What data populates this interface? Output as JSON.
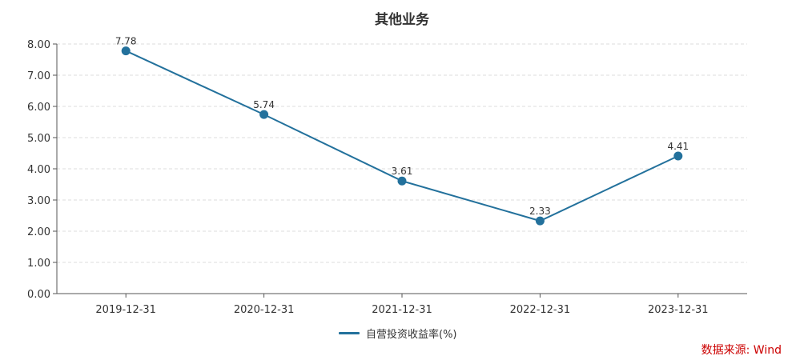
{
  "chart_data": {
    "type": "line",
    "title": "其他业务",
    "categories": [
      "2019-12-31",
      "2020-12-31",
      "2021-12-31",
      "2022-12-31",
      "2023-12-31"
    ],
    "series": [
      {
        "name": "自营投资收益率(%)",
        "values": [
          7.78,
          5.74,
          3.61,
          2.33,
          4.41
        ],
        "labels": [
          "7.78",
          "5.74",
          "3.61",
          "2.33",
          "4.41"
        ]
      }
    ],
    "yticks": [
      "0.00",
      "1.00",
      "2.00",
      "3.00",
      "4.00",
      "5.00",
      "6.00",
      "7.00",
      "8.00"
    ],
    "ylim": [
      0,
      8
    ],
    "grid": true,
    "legend_position": "bottom-center",
    "color": "#23719c"
  },
  "source": {
    "label": "数据来源: Wind",
    "color": "#cc0000"
  }
}
